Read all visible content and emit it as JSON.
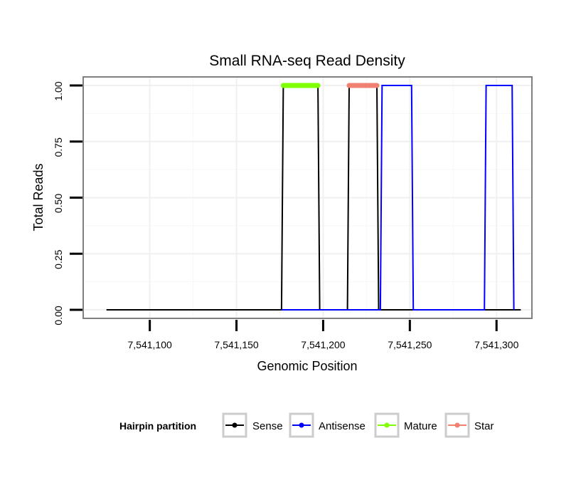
{
  "chart_data": {
    "type": "line",
    "title": "Small RNA-seq Read Density",
    "xlabel": "Genomic Position",
    "ylabel": "Total Reads",
    "xlim": [
      7541062,
      7541320
    ],
    "ylim": [
      -0.035,
      1.035
    ],
    "x_ticks": [
      7541100,
      7541150,
      7541200,
      7541250,
      7541300
    ],
    "x_tick_labels": [
      "7,541,100",
      "7,541,150",
      "7,541,200",
      "7,541,250",
      "7,541,300"
    ],
    "y_ticks": [
      0,
      0.25,
      0.5,
      0.75,
      1
    ],
    "y_tick_labels": [
      "0.00",
      "0.25",
      "0.50",
      "0.75",
      "1.00"
    ],
    "grid": true,
    "legend_title": "Hairpin partition",
    "legend_position": "bottom",
    "series": [
      {
        "name": "Sense",
        "color": "#000000",
        "x": [
          7541075,
          7541176,
          7541177,
          7541197,
          7541198,
          7541214,
          7541215,
          7541231,
          7541232,
          7541314
        ],
        "y": [
          0,
          0,
          1,
          1,
          0,
          0,
          1,
          1,
          0,
          0
        ]
      },
      {
        "name": "Antisense",
        "color": "#0000ff",
        "x": [
          7541176,
          7541233,
          7541234,
          7541251,
          7541252,
          7541293,
          7541294,
          7541309,
          7541310
        ],
        "y": [
          0,
          0,
          1,
          1,
          0,
          0,
          1,
          1,
          0
        ]
      },
      {
        "name": "Mature",
        "color": "#7fff00",
        "x": [
          7541177,
          7541197
        ],
        "y": [
          1,
          1
        ]
      },
      {
        "name": "Star",
        "color": "#f08070",
        "x": [
          7541215,
          7541231
        ],
        "y": [
          1,
          1
        ]
      }
    ]
  }
}
